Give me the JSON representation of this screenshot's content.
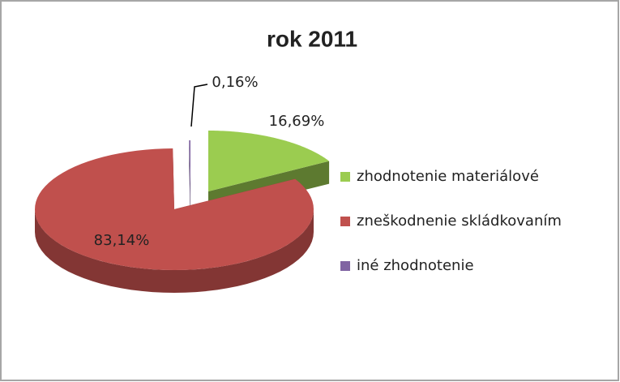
{
  "chart_data": {
    "type": "pie",
    "title": "rok 2011",
    "categories": [
      "zhodnotenie materiálové",
      "zneškodnenie skládkovaním",
      "iné zhodnotenie"
    ],
    "values": [
      16.69,
      83.14,
      0.16
    ],
    "value_labels": [
      "16,69%",
      "83,14%",
      "0,16%"
    ],
    "colors": [
      "#9bcc50",
      "#c0504d",
      "#8064a2"
    ],
    "legend": "right"
  }
}
